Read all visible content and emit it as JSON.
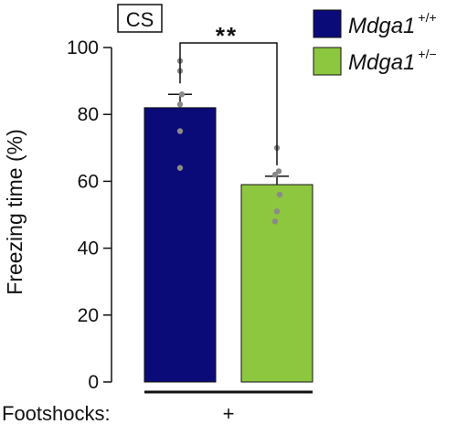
{
  "panel_label": "CS",
  "significance": "**",
  "footer": {
    "label": "Footshocks:",
    "marker": "+"
  },
  "chart_data": {
    "type": "bar",
    "ylabel": "Freezing time (%)",
    "xlabel": "",
    "ylim": [
      0,
      100
    ],
    "yticks": [
      0,
      20,
      40,
      60,
      80,
      100
    ],
    "grid": false,
    "legend_position": "top-right",
    "series": [
      {
        "name": "Mdga1",
        "genotype": "+/+",
        "color": "#0a0a78",
        "mean": 82,
        "sem": 4,
        "points": [
          96,
          93,
          86,
          83,
          75,
          64
        ]
      },
      {
        "name": "Mdga1",
        "genotype": "+/−",
        "color": "#8dc63f",
        "mean": 59,
        "sem": 2.5,
        "points": [
          70,
          63,
          62,
          56,
          51,
          48
        ]
      }
    ]
  }
}
